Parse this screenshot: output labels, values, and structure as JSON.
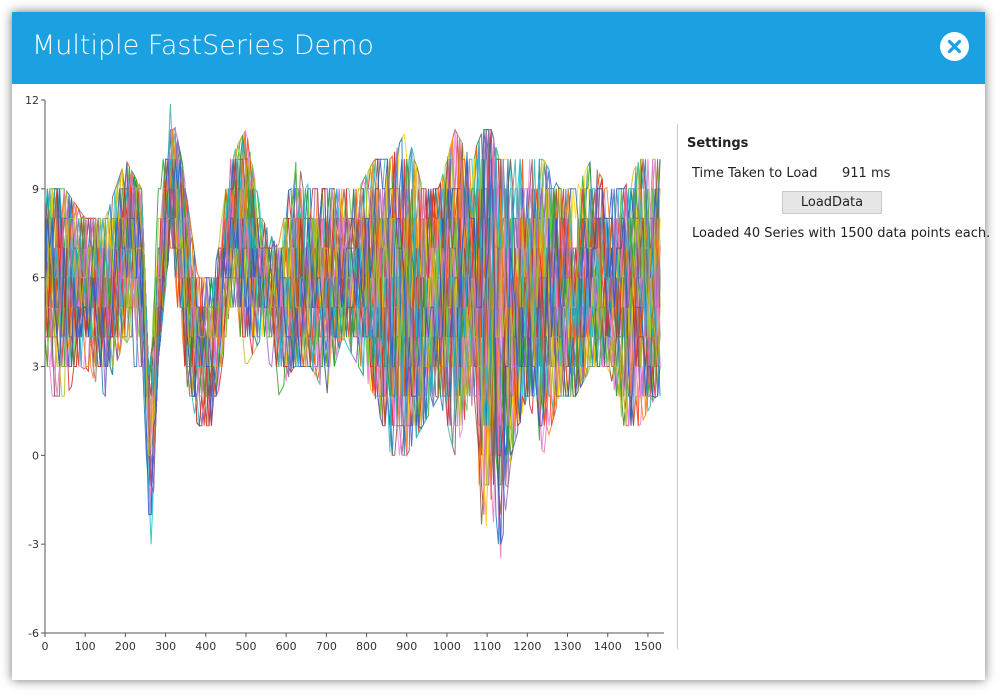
{
  "window": {
    "title": "Multiple FastSeries Demo",
    "accent_color": "#1ba1e2",
    "close_icon": "close-icon"
  },
  "settings": {
    "heading": "Settings",
    "time_label": "Time Taken to Load",
    "time_value": "911 ms",
    "load_button": "LoadData",
    "status": "Loaded 40 Series with 1500 data points each."
  },
  "chart_data": {
    "type": "line",
    "series_count": 40,
    "points_per_series": 1500,
    "xlim": [
      0,
      1540
    ],
    "ylim": [
      -6,
      12
    ],
    "x_ticks": [
      0,
      100,
      200,
      300,
      400,
      500,
      600,
      700,
      800,
      900,
      1000,
      1100,
      1200,
      1300,
      1400,
      1500
    ],
    "y_ticks": [
      -6,
      -3,
      0,
      3,
      6,
      9,
      12
    ],
    "grid": false,
    "legend": "none",
    "series_colors": [
      "#1f77b4",
      "#ff7f0e",
      "#2ca02c",
      "#d62728",
      "#9467bd",
      "#8c564b",
      "#e377c2",
      "#17becf",
      "#bcbd22",
      "#3355cc",
      "#33b3a6",
      "#ee82ee",
      "#ffd700",
      "#66cc33",
      "#ff4500"
    ],
    "envelope": {
      "x": [
        0,
        50,
        100,
        150,
        200,
        240,
        260,
        280,
        310,
        340,
        380,
        420,
        460,
        500,
        540,
        580,
        620,
        660,
        700,
        740,
        780,
        820,
        860,
        900,
        940,
        980,
        1020,
        1060,
        1090,
        1110,
        1130,
        1160,
        1200,
        1240,
        1280,
        1320,
        1360,
        1400,
        1440,
        1480,
        1520,
        1540
      ],
      "low": [
        2,
        2,
        3,
        2,
        4,
        2,
        -5.5,
        3,
        7,
        3,
        1,
        1,
        5,
        3,
        4,
        2,
        3,
        3,
        2,
        4,
        3,
        2,
        0,
        0,
        1,
        2,
        0,
        2,
        -3,
        -1.5,
        -4,
        0,
        2,
        0,
        2,
        2,
        3,
        3,
        1,
        1,
        2,
        2
      ],
      "high": [
        9,
        9,
        8,
        8,
        10,
        9,
        2,
        9,
        12,
        10,
        6,
        6,
        10,
        11,
        8,
        7,
        10,
        9,
        9,
        9,
        9,
        10,
        10,
        11,
        9,
        9,
        11,
        10,
        11,
        11,
        10,
        10,
        10,
        10,
        9,
        9,
        10,
        9,
        9,
        10,
        10,
        10
      ],
      "mid": [
        6,
        6,
        6,
        5,
        8,
        7,
        -2,
        7,
        10,
        6,
        3,
        4,
        8,
        7,
        6,
        5,
        6,
        6,
        6,
        6,
        6,
        6,
        5,
        5,
        5,
        6,
        6,
        6,
        5,
        5,
        5,
        5,
        6,
        5,
        6,
        5,
        6,
        6,
        5,
        6,
        6,
        6
      ]
    }
  }
}
